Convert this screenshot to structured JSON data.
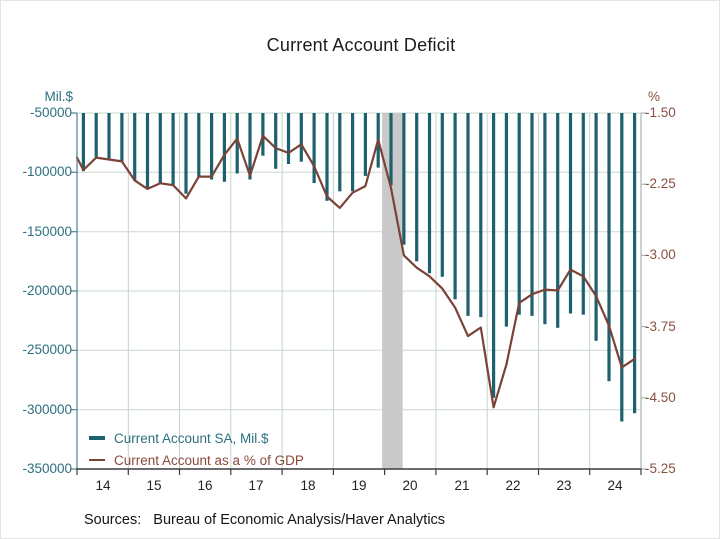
{
  "title": "Current Account Deficit",
  "source_note": "Sources:   Bureau of Economic Analysis/Haver Analytics",
  "left_axis": {
    "unit": "Mil.$",
    "color": "#2d7080"
  },
  "right_axis": {
    "unit": "%",
    "color": "#8a5044"
  },
  "legend": [
    {
      "label": "Current Account SA, Mil.$",
      "color": "#1e616e"
    },
    {
      "label": "Current Account as a % of GDP",
      "color": "#7b4237"
    }
  ],
  "colors": {
    "bar": "#1e616e",
    "line": "#7b4237",
    "grid_h": "#c9d8cf",
    "grid_v": "#c5d2cc",
    "band": "#c9c9c9",
    "axis_left": "#4d8191",
    "axis_right": "#aab4af",
    "axis_bottom": "#3c3c3c",
    "teal_text": "#2d7080",
    "brown_text": "#8a5044",
    "dark_text": "#1c1c1c"
  },
  "chart_data": {
    "type": "combo_bar_line",
    "title": "Current Account Deficit",
    "x_tick_labels": [
      "14",
      "15",
      "16",
      "17",
      "18",
      "19",
      "20",
      "21",
      "22",
      "23",
      "24"
    ],
    "left_tick_labels": [
      "-50000",
      "-100000",
      "-150000",
      "-200000",
      "-250000",
      "-300000",
      "-350000"
    ],
    "left_tick_values": [
      -50000,
      -100000,
      -150000,
      -200000,
      -250000,
      -300000,
      -350000
    ],
    "right_tick_labels": [
      "-1.50",
      "-2.25",
      "-3.00",
      "-3.75",
      "-4.50",
      "-5.25"
    ],
    "right_tick_values": [
      -1.5,
      -2.25,
      -3.0,
      -3.75,
      -4.5,
      -5.25
    ],
    "left_axis_range": [
      -350000,
      -50000
    ],
    "right_axis_range": [
      -5.25,
      -1.5
    ],
    "grid": "horizontal-and-yearly-vertical",
    "legend_position": "bottom-left-inside",
    "recession_band": {
      "from_index": 23.3,
      "to_index": 24.9
    },
    "quarters": [
      "2014Q1",
      "2014Q2",
      "2014Q3",
      "2014Q4",
      "2015Q1",
      "2015Q2",
      "2015Q3",
      "2015Q4",
      "2016Q1",
      "2016Q2",
      "2016Q3",
      "2016Q4",
      "2017Q1",
      "2017Q2",
      "2017Q3",
      "2017Q4",
      "2018Q1",
      "2018Q2",
      "2018Q3",
      "2018Q4",
      "2019Q1",
      "2019Q2",
      "2019Q3",
      "2019Q4",
      "2020Q1",
      "2020Q2",
      "2020Q3",
      "2020Q4",
      "2021Q1",
      "2021Q2",
      "2021Q3",
      "2021Q4",
      "2022Q1",
      "2022Q2",
      "2022Q3",
      "2022Q4",
      "2023Q1",
      "2023Q2",
      "2023Q3",
      "2023Q4",
      "2024Q1",
      "2024Q2",
      "2024Q3",
      "2024Q4"
    ],
    "series": [
      {
        "name": "Current Account SA, Mil.$",
        "type": "bar",
        "axis": "left",
        "values": [
          -99000,
          -87000,
          -89000,
          -91000,
          -107000,
          -114000,
          -110000,
          -111000,
          -118000,
          -104000,
          -106000,
          -108000,
          -101000,
          -106000,
          -86000,
          -97000,
          -93000,
          -91000,
          -109000,
          -124000,
          -116000,
          -116000,
          -103000,
          -96000,
          -111000,
          -161000,
          -175000,
          -185000,
          -188000,
          -207000,
          -221000,
          -222000,
          -290000,
          -230000,
          -220000,
          -221000,
          -228000,
          -231000,
          -219000,
          -220000,
          -242000,
          -276000,
          -310000,
          -303000
        ]
      },
      {
        "name": "Current Account as a % of GDP",
        "type": "line",
        "axis": "right",
        "edge_value": -1.97,
        "values": [
          -2.1,
          -1.97,
          -1.99,
          -2.01,
          -2.21,
          -2.3,
          -2.24,
          -2.26,
          -2.4,
          -2.17,
          -2.17,
          -1.94,
          -1.77,
          -2.16,
          -1.74,
          -1.87,
          -1.92,
          -1.83,
          -2.06,
          -2.38,
          -2.5,
          -2.34,
          -2.27,
          -1.78,
          -2.29,
          -3.0,
          -3.13,
          -3.22,
          -3.35,
          -3.55,
          -3.85,
          -3.76,
          -4.6,
          -4.15,
          -3.5,
          -3.41,
          -3.36,
          -3.37,
          -3.15,
          -3.22,
          -3.43,
          -3.74,
          -4.18,
          -4.09
        ]
      }
    ]
  }
}
